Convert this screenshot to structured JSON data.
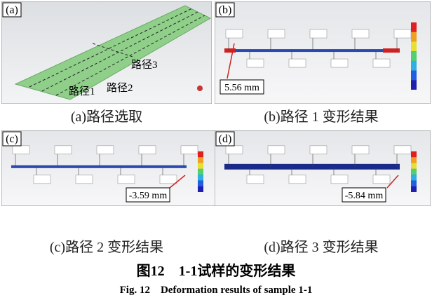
{
  "panels": [
    {
      "tag": "(a)",
      "labels": [
        "路径3",
        "路径1",
        "路径2"
      ],
      "caption": "(a)路径选取"
    },
    {
      "tag": "(b)",
      "measurement": "5.56 mm",
      "caption": "(b)路径 1 变形结果"
    },
    {
      "tag": "(c)",
      "measurement": "-3.59 mm",
      "caption": "(c)路径 2 变形结果"
    },
    {
      "tag": "(d)",
      "measurement": "-5.84 mm",
      "caption": "(d)路径 3 变形结果"
    }
  ],
  "figure_title": "图12　1-1试样的变形结果",
  "figure_title_en": "Fig. 12　Deformation results of sample 1-1"
}
